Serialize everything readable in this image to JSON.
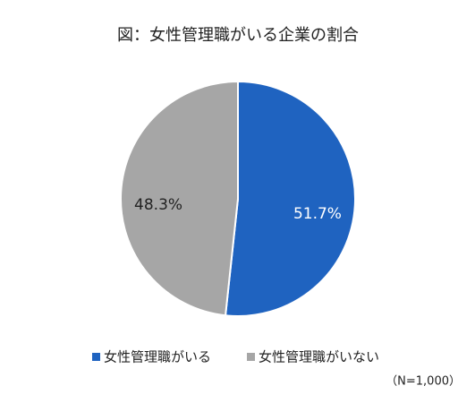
{
  "chart_data": {
    "type": "pie",
    "title": "図：女性管理職がいる企業の割合",
    "categories": [
      "女性管理職がいる",
      "女性管理職がいない"
    ],
    "values": [
      51.7,
      48.3
    ],
    "value_labels": [
      "51.7%",
      "48.3%"
    ],
    "colors": [
      "#1f63c0",
      "#a6a6a6"
    ],
    "label_colors": [
      "#ffffff",
      "#222222"
    ],
    "legend": "bottom",
    "annotation": "（N=1,000）"
  }
}
